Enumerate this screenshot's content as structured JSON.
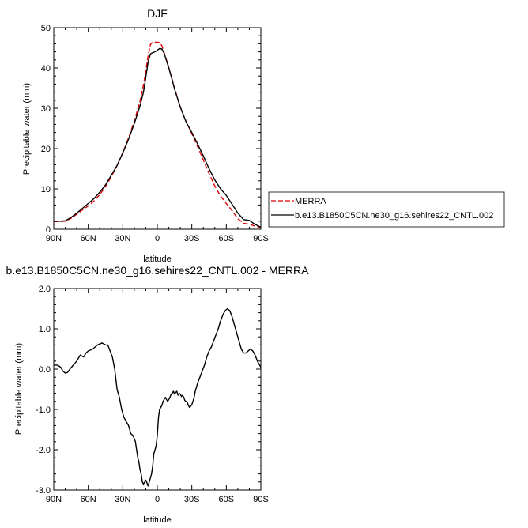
{
  "chart_data": [
    {
      "type": "line",
      "title": "DJF",
      "xlabel": "latitude",
      "ylabel": "Precipitable water (mm)",
      "x_ticks": [
        {
          "value": 90,
          "label": "90N"
        },
        {
          "value": 60,
          "label": "60N"
        },
        {
          "value": 30,
          "label": "30N"
        },
        {
          "value": 0,
          "label": "0"
        },
        {
          "value": -30,
          "label": "30S"
        },
        {
          "value": -60,
          "label": "60S"
        },
        {
          "value": -90,
          "label": "90S"
        }
      ],
      "xlim": [
        90,
        -90
      ],
      "ylim": [
        0,
        50
      ],
      "y_ticks": [
        {
          "value": 0,
          "label": "0"
        },
        {
          "value": 10,
          "label": "10"
        },
        {
          "value": 20,
          "label": "20"
        },
        {
          "value": 30,
          "label": "30"
        },
        {
          "value": 40,
          "label": "40"
        },
        {
          "value": 50,
          "label": "50"
        }
      ],
      "grid": false,
      "legend_position": "right",
      "series": [
        {
          "name": "MERRA",
          "color": "#dd0000",
          "dash": "dashed",
          "x": [
            90,
            85,
            80,
            75,
            70,
            65,
            60,
            55,
            50,
            45,
            40,
            35,
            30,
            25,
            20,
            15,
            12,
            10,
            8,
            6,
            4,
            2,
            0,
            -2,
            -4,
            -6,
            -8,
            -10,
            -12,
            -15,
            -20,
            -25,
            -30,
            -35,
            -40,
            -45,
            -50,
            -55,
            -60,
            -65,
            -70,
            -75,
            -80,
            -85,
            -90
          ],
          "y": [
            1.9,
            1.9,
            2.0,
            2.7,
            3.7,
            4.8,
            5.8,
            7.0,
            8.6,
            10.6,
            13.0,
            15.8,
            19.0,
            22.6,
            26.8,
            31.8,
            35.8,
            39.2,
            43.0,
            45.8,
            46.4,
            46.4,
            46.4,
            46.3,
            45.5,
            43.8,
            42.0,
            40.0,
            38.0,
            35.0,
            30.3,
            26.7,
            23.7,
            20.5,
            17.2,
            13.8,
            10.7,
            8.2,
            6.4,
            4.6,
            2.6,
            1.5,
            1.2,
            0.8,
            0.4
          ]
        },
        {
          "name": "b.e13.B1850C5CN.ne30_g16.sehires22_CNTL.002",
          "color": "#000000",
          "dash": "solid",
          "x": [
            90,
            85,
            80,
            75,
            70,
            65,
            60,
            55,
            50,
            45,
            40,
            35,
            30,
            25,
            20,
            15,
            12,
            10,
            8,
            6,
            4,
            2,
            0,
            -2,
            -4,
            -6,
            -8,
            -10,
            -12,
            -15,
            -20,
            -25,
            -30,
            -35,
            -40,
            -45,
            -50,
            -55,
            -60,
            -65,
            -70,
            -75,
            -80,
            -85,
            -90
          ],
          "y": [
            2.0,
            2.0,
            2.1,
            2.9,
            4.0,
            5.2,
            6.4,
            7.6,
            9.2,
            11.0,
            13.4,
            15.8,
            18.9,
            22.3,
            26.2,
            30.6,
            34.0,
            37.6,
            41.5,
            43.5,
            43.8,
            44.0,
            44.4,
            44.8,
            44.7,
            43.6,
            41.8,
            40.0,
            38.0,
            34.8,
            30.3,
            26.6,
            24.0,
            21.2,
            18.2,
            15.0,
            12.2,
            10.0,
            8.4,
            6.2,
            4.0,
            2.4,
            2.2,
            1.2,
            0.5
          ]
        }
      ]
    },
    {
      "type": "line",
      "title": "b.e13.B1850C5CN.ne30_g16.sehires22_CNTL.002 - MERRA",
      "xlabel": "latitude",
      "ylabel": "Precipitable water (mm)",
      "x_ticks": [
        {
          "value": 90,
          "label": "90N"
        },
        {
          "value": 60,
          "label": "60N"
        },
        {
          "value": 30,
          "label": "30N"
        },
        {
          "value": 0,
          "label": "0"
        },
        {
          "value": -30,
          "label": "30S"
        },
        {
          "value": -60,
          "label": "60S"
        },
        {
          "value": -90,
          "label": "90S"
        }
      ],
      "xlim": [
        90,
        -90
      ],
      "ylim": [
        -3.0,
        2.0
      ],
      "y_ticks": [
        {
          "value": 2.0,
          "label": "2.0"
        },
        {
          "value": 1.0,
          "label": "1.0"
        },
        {
          "value": 0.0,
          "label": "0.0"
        },
        {
          "value": -1.0,
          "label": "-1.0"
        },
        {
          "value": -2.0,
          "label": "-2.0"
        },
        {
          "value": -3.0,
          "label": "-3.0"
        }
      ],
      "grid": false,
      "series": [
        {
          "color": "#000000",
          "dash": "solid",
          "x": [
            90,
            87,
            84,
            82,
            80,
            78,
            76,
            73,
            70,
            67,
            64,
            62,
            60,
            56,
            52,
            48,
            45,
            43,
            41,
            39,
            37,
            35,
            33,
            31,
            29,
            27,
            25,
            23,
            21,
            19,
            18,
            17,
            16,
            15,
            14,
            13,
            12,
            11,
            10,
            9,
            8,
            7,
            6,
            5,
            4,
            3,
            2,
            1,
            0,
            -1,
            -2,
            -3,
            -4,
            -5,
            -6,
            -7,
            -8,
            -9,
            -10,
            -11,
            -12,
            -13,
            -14,
            -15,
            -16,
            -17,
            -18,
            -19,
            -20,
            -21,
            -22,
            -23,
            -24,
            -25,
            -26,
            -27,
            -28,
            -29,
            -30,
            -31,
            -32,
            -33,
            -34,
            -35,
            -37,
            -39,
            -41,
            -43,
            -45,
            -47,
            -49,
            -51,
            -53,
            -55,
            -57,
            -59,
            -61,
            -63,
            -65,
            -67,
            -69,
            -71,
            -73,
            -75,
            -77,
            -79,
            -81,
            -83,
            -85,
            -87,
            -90
          ],
          "y": [
            0.1,
            0.1,
            0.05,
            -0.05,
            -0.1,
            -0.08,
            0.0,
            0.1,
            0.2,
            0.35,
            0.3,
            0.4,
            0.45,
            0.5,
            0.6,
            0.65,
            0.6,
            0.6,
            0.45,
            0.3,
            0.0,
            -0.5,
            -0.7,
            -1.0,
            -1.2,
            -1.3,
            -1.4,
            -1.6,
            -1.65,
            -1.8,
            -2.0,
            -2.2,
            -2.3,
            -2.5,
            -2.6,
            -2.8,
            -2.85,
            -2.8,
            -2.75,
            -2.82,
            -2.9,
            -2.8,
            -2.7,
            -2.6,
            -2.4,
            -2.1,
            -2.0,
            -1.9,
            -1.65,
            -1.2,
            -1.0,
            -0.95,
            -0.9,
            -0.8,
            -0.75,
            -0.7,
            -0.75,
            -0.8,
            -0.75,
            -0.7,
            -0.62,
            -0.6,
            -0.55,
            -0.62,
            -0.58,
            -0.55,
            -0.65,
            -0.6,
            -0.62,
            -0.68,
            -0.65,
            -0.7,
            -0.78,
            -0.8,
            -0.82,
            -0.9,
            -0.95,
            -0.92,
            -0.88,
            -0.8,
            -0.7,
            -0.55,
            -0.45,
            -0.35,
            -0.2,
            -0.05,
            0.1,
            0.3,
            0.45,
            0.55,
            0.7,
            0.85,
            1.0,
            1.2,
            1.35,
            1.45,
            1.5,
            1.45,
            1.3,
            1.1,
            0.9,
            0.7,
            0.5,
            0.4,
            0.4,
            0.45,
            0.5,
            0.45,
            0.35,
            0.2,
            0.05
          ]
        }
      ]
    }
  ]
}
